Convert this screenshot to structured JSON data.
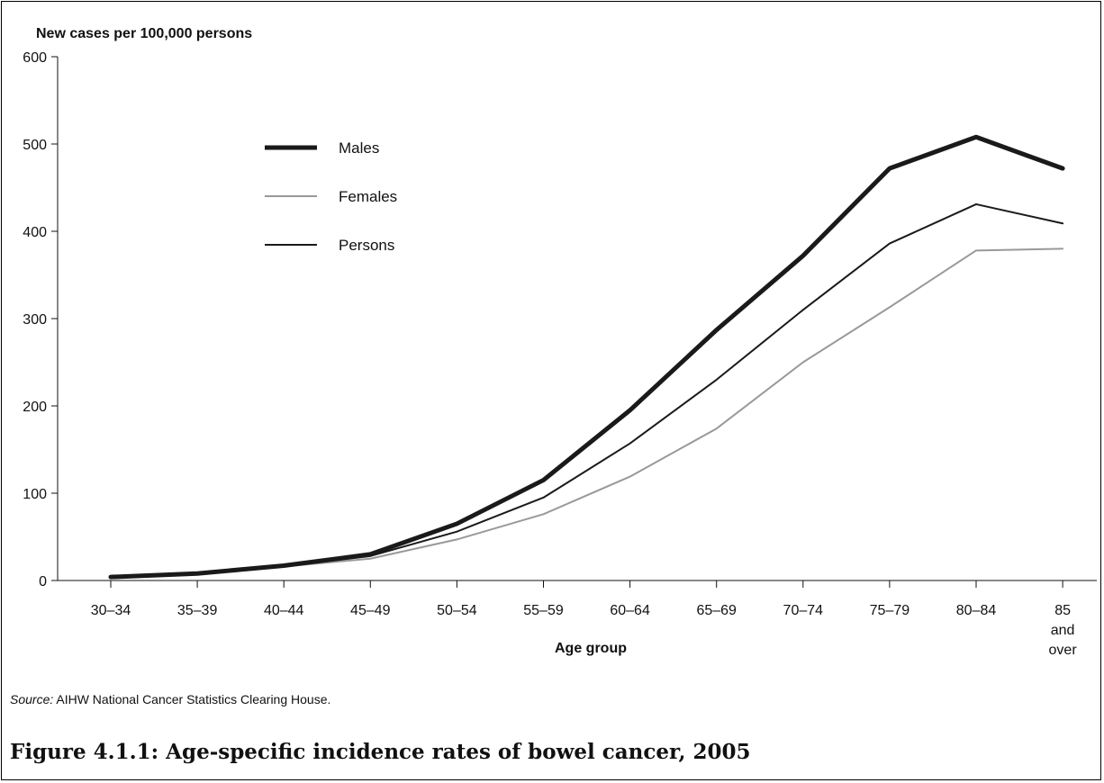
{
  "chart_data": {
    "type": "line",
    "ylabel": "New cases per 100,000 persons",
    "xlabel": "Age group",
    "ylim": [
      0,
      600
    ],
    "yticks": [
      0,
      100,
      200,
      300,
      400,
      500,
      600
    ],
    "categories": [
      "30–34",
      "35–39",
      "40–44",
      "45–49",
      "50–54",
      "55–59",
      "60–64",
      "65–69",
      "70–74",
      "75–79",
      "80–84",
      "85 and over"
    ],
    "category_lines": [
      [
        "30–34"
      ],
      [
        "35–39"
      ],
      [
        "40–44"
      ],
      [
        "45–49"
      ],
      [
        "50–54"
      ],
      [
        "55–59"
      ],
      [
        "60–64"
      ],
      [
        "65–69"
      ],
      [
        "70–74"
      ],
      [
        "75–79"
      ],
      [
        "80–84"
      ],
      [
        "85",
        "and",
        "over"
      ]
    ],
    "series": [
      {
        "name": "Males",
        "color": "#1a1a1a",
        "values": [
          4,
          8,
          17,
          30,
          65,
          115,
          195,
          287,
          372,
          472,
          508,
          472
        ]
      },
      {
        "name": "Females",
        "color": "#999999",
        "values": [
          3,
          7,
          16,
          25,
          47,
          76,
          119,
          174,
          250,
          313,
          378,
          380
        ]
      },
      {
        "name": "Persons",
        "color": "#1a1a1a",
        "values": [
          3,
          8,
          16,
          28,
          56,
          95,
          157,
          230,
          310,
          386,
          431,
          409
        ]
      }
    ],
    "legend_position": "top-left",
    "grid": false
  },
  "source": {
    "label": "Source:",
    "text": " AIHW National Cancer Statistics Clearing House."
  },
  "caption": "Figure 4.1.1: Age-specific incidence rates of bowel cancer, 2005"
}
